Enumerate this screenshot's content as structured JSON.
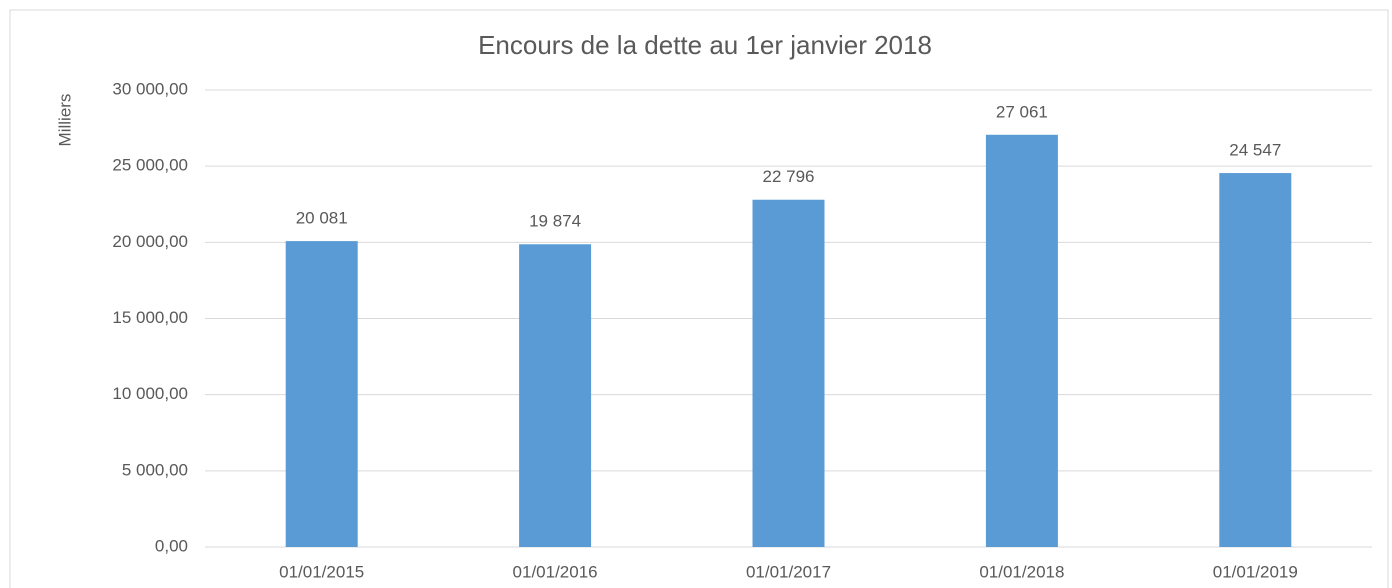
{
  "chart_data": {
    "type": "bar",
    "title": "Encours de la dette au 1er janvier 2018",
    "y_label": "Milliers",
    "categories": [
      "01/01/2015",
      "01/01/2016",
      "01/01/2017",
      "01/01/2018",
      "01/01/2019"
    ],
    "values": [
      20081,
      19874,
      22796,
      27061,
      24547
    ],
    "value_labels": [
      "20 081",
      "19 874",
      "22 796",
      "27 061",
      "24 547"
    ],
    "color": "#5b9bd5",
    "ylim": [
      0,
      30000
    ],
    "yticks": [
      {
        "value": 0,
        "label": "0,00"
      },
      {
        "value": 5000,
        "label": "5 000,00"
      },
      {
        "value": 10000,
        "label": "10 000,00"
      },
      {
        "value": 15000,
        "label": "15 000,00"
      },
      {
        "value": 20000,
        "label": "20 000,00"
      },
      {
        "value": 25000,
        "label": "25 000,00"
      },
      {
        "value": 30000,
        "label": "30 000,00"
      }
    ],
    "grid": true
  }
}
